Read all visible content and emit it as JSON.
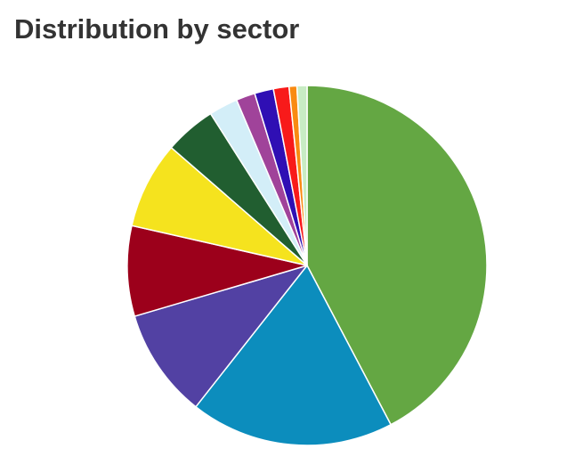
{
  "chart_data": {
    "type": "pie",
    "title": "Distribution by sector",
    "values": [
      42.2,
      18.3,
      9.8,
      8.1,
      7.8,
      4.6,
      2.6,
      1.7,
      1.7,
      1.4,
      0.7,
      0.9
    ],
    "colors": [
      "#64a743",
      "#0c8dbd",
      "#5241a3",
      "#9c001b",
      "#f5e31e",
      "#215e30",
      "#d3eef8",
      "#a0439a",
      "#2f0fb4",
      "#f81a1a",
      "#f98a12",
      "#c8ecc4"
    ]
  }
}
